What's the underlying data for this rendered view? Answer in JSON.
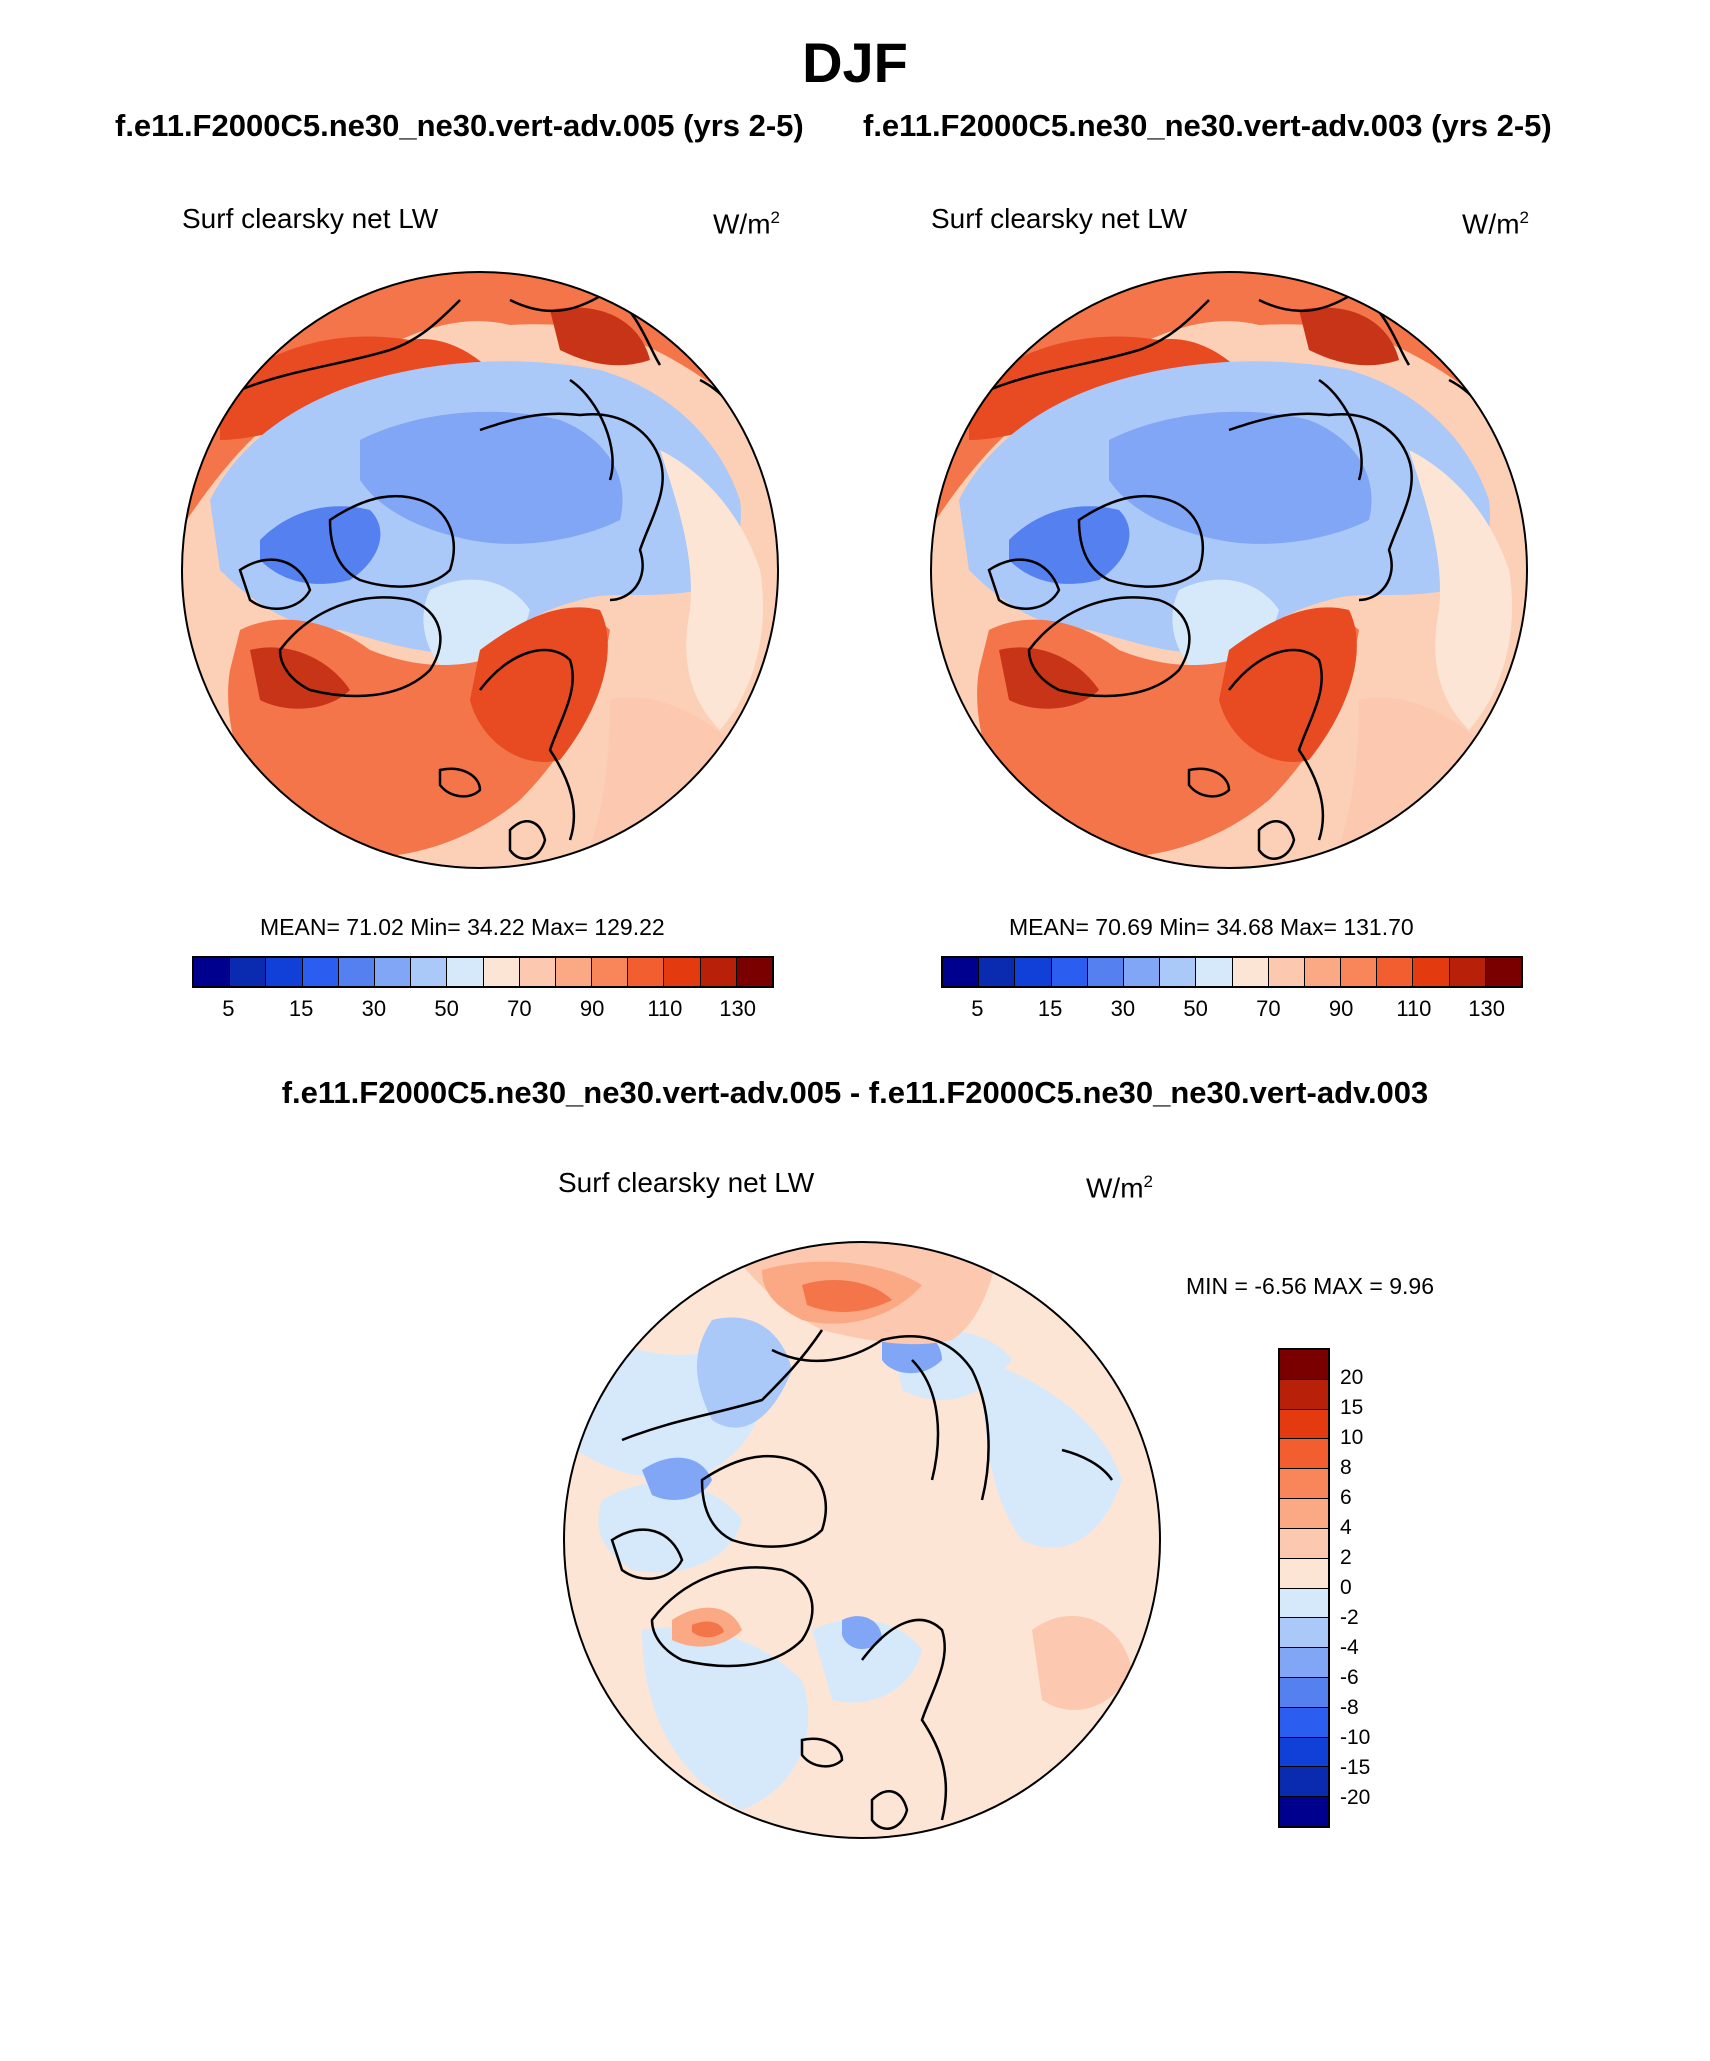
{
  "figure": {
    "title": "DJF",
    "case_a_title": "f.e11.F2000C5.ne30_ne30.vert-adv.005 (yrs 2-5)",
    "case_b_title": "f.e11.F2000C5.ne30_ne30.vert-adv.003 (yrs 2-5)",
    "diff_title": "f.e11.F2000C5.ne30_ne30.vert-adv.005 - f.e11.F2000C5.ne30_ne30.vert-adv.003"
  },
  "panels": {
    "a": {
      "label": "Surf clearsky net LW",
      "units": "W/m",
      "units_sup": "2",
      "stats": "MEAN=  71.02  Min=  34.22  Max= 129.22"
    },
    "b": {
      "label": "Surf clearsky net LW",
      "units": "W/m",
      "units_sup": "2",
      "stats": "MEAN=  70.69  Min=  34.68  Max= 131.70"
    },
    "diff": {
      "label": "Surf clearsky net LW",
      "units": "W/m",
      "units_sup": "2",
      "stats": "MIN =  -6.56 MAX =   9.96"
    }
  },
  "colorbars": {
    "abs_ticks": [
      "5",
      "15",
      "30",
      "50",
      "70",
      "90",
      "110",
      "130"
    ],
    "diff_ticks": [
      "20",
      "15",
      "10",
      "8",
      "6",
      "4",
      "2",
      "0",
      "-2",
      "-4",
      "-6",
      "-8",
      "-10",
      "-15",
      "-20"
    ],
    "abs_colors": [
      "#00008f",
      "#0a2ab0",
      "#1040d8",
      "#2a5df0",
      "#5580f0",
      "#80a6f5",
      "#aac8f8",
      "#d6e9fb",
      "#fde5d5",
      "#fcc9b0",
      "#fba985",
      "#f9855a",
      "#f25e30",
      "#e33a10",
      "#b8200a",
      "#7a0000"
    ],
    "diff_colors": [
      "#7a0000",
      "#b8200a",
      "#e33a10",
      "#f25e30",
      "#f9855a",
      "#fba985",
      "#fcc9b0",
      "#fde5d5",
      "#d6e9fb",
      "#aac8f8",
      "#80a6f5",
      "#5580f0",
      "#2a5df0",
      "#1040d8",
      "#0a2ab0",
      "#00008f"
    ]
  }
}
